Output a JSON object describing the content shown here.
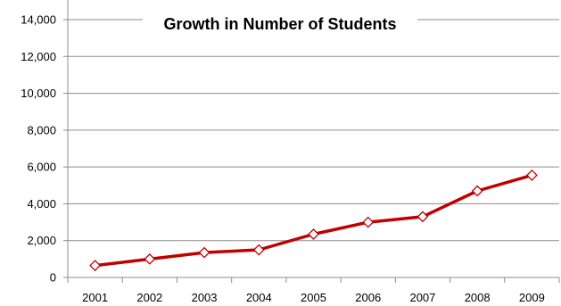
{
  "chart_data": {
    "type": "line",
    "title": "Growth in Number of Students",
    "x": [
      "2001",
      "2002",
      "2003",
      "2004",
      "2005",
      "2006",
      "2007",
      "2008",
      "2009"
    ],
    "series": [
      {
        "values": [
          650,
          1000,
          1350,
          1500,
          2350,
          3000,
          3300,
          4700,
          5550
        ]
      }
    ],
    "ylim": [
      0,
      14000
    ],
    "yticks": [
      "0",
      "2,000",
      "4,000",
      "6,000",
      "8,000",
      "10,000",
      "12,000",
      "14,000"
    ],
    "grid": true,
    "line_color": "#c00000",
    "marker": "diamond"
  }
}
